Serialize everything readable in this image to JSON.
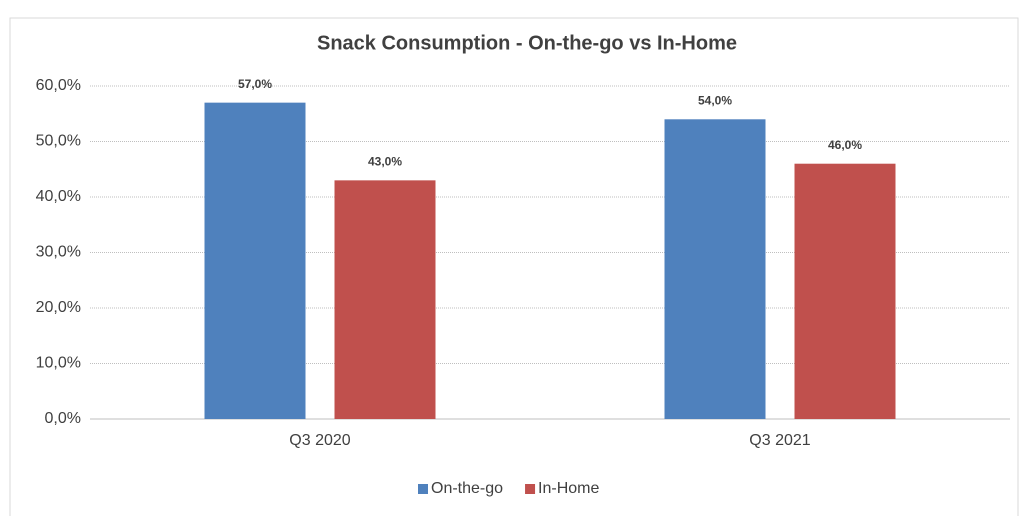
{
  "chart_data": {
    "type": "bar",
    "title": "Snack Consumption - On-the-go vs In-Home",
    "categories": [
      "Q3 2020",
      "Q3 2021"
    ],
    "series": [
      {
        "name": "On-the-go",
        "color": "#4f81bd",
        "values": [
          57,
          54
        ],
        "value_labels": [
          "57,0%",
          "54,0%"
        ]
      },
      {
        "name": "In-Home",
        "color": "#c0504d",
        "values": [
          43,
          46
        ],
        "value_labels": [
          "43,0%",
          "46,0%"
        ]
      }
    ],
    "ylim": [
      0,
      60
    ],
    "yticks": [
      {
        "value": 0,
        "label": "0,0%"
      },
      {
        "value": 10,
        "label": "10,0%"
      },
      {
        "value": 20,
        "label": "20,0%"
      },
      {
        "value": 30,
        "label": "30,0%"
      },
      {
        "value": 40,
        "label": "40,0%"
      },
      {
        "value": 50,
        "label": "50,0%"
      },
      {
        "value": 60,
        "label": "60,0%"
      }
    ],
    "grid": true,
    "legend": "bottom"
  }
}
